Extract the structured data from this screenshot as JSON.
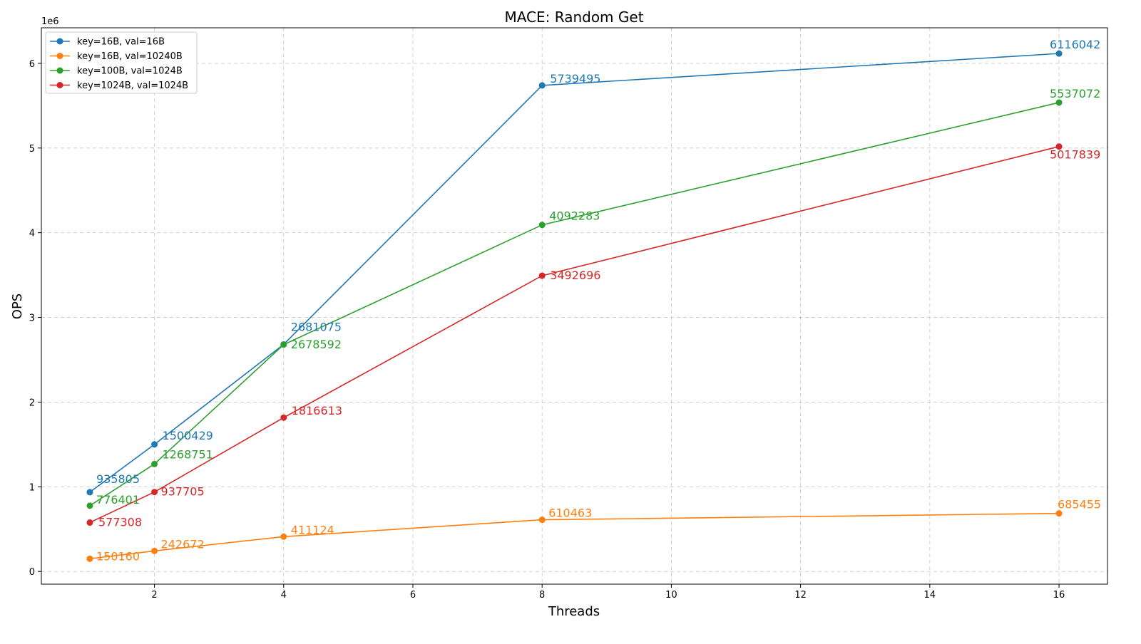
{
  "chart_data": {
    "type": "line",
    "title": "MACE: Random Get",
    "xlabel": "Threads",
    "ylabel": "OPS",
    "y_offset_label": "1e6",
    "x": [
      1,
      2,
      4,
      8,
      16
    ],
    "xlim": [
      0.25,
      16.75
    ],
    "ylim": [
      -150000,
      6420000
    ],
    "xticks": [
      2,
      4,
      6,
      8,
      10,
      12,
      14,
      16
    ],
    "yticks": [
      0,
      1,
      2,
      3,
      4,
      5,
      6
    ],
    "ytick_scale": 1000000,
    "grid": true,
    "legend_position": "top-left",
    "series": [
      {
        "name": "key=16B, val=16B",
        "color": "#1f77b4",
        "values": [
          935805,
          1500429,
          2681075,
          5739495,
          6116042
        ]
      },
      {
        "name": "key=16B, val=10240B",
        "color": "#ff7f0e",
        "values": [
          150160,
          242672,
          411124,
          610463,
          685455
        ]
      },
      {
        "name": "key=100B, val=1024B",
        "color": "#2ca02c",
        "values": [
          776401,
          1268751,
          2678592,
          4092283,
          5537072
        ]
      },
      {
        "name": "key=1024B, val=1024B",
        "color": "#d62728",
        "values": [
          577308,
          937705,
          1816613,
          3492696,
          5017839
        ]
      }
    ]
  }
}
